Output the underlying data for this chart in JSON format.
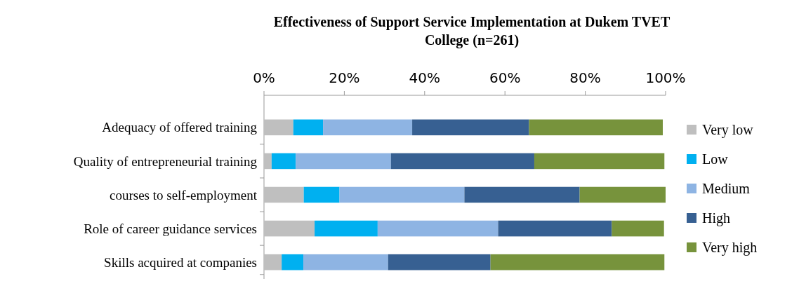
{
  "chart_data": {
    "type": "bar",
    "orientation": "horizontal",
    "stacked": true,
    "title": "Effectiveness of Support Service Implementation at Dukem TVET College (n=261)",
    "categories": [
      "Adequacy of offered training",
      "Quality of entrepreneurial training",
      "courses to self-employment",
      "Role of career guidance services",
      "Skills acquired at companies"
    ],
    "series": [
      {
        "name": "Very low",
        "color": "#bfbfbf",
        "values": [
          7.3,
          1.9,
          9.9,
          12.6,
          4.4
        ]
      },
      {
        "name": "Low",
        "color": "#00b0f0",
        "values": [
          7.4,
          6.0,
          8.9,
          15.7,
          5.4
        ]
      },
      {
        "name": "Medium",
        "color": "#8eb4e3",
        "values": [
          22.2,
          23.7,
          31.1,
          30.0,
          21.1
        ]
      },
      {
        "name": "High",
        "color": "#376092",
        "values": [
          29.1,
          35.7,
          28.7,
          28.3,
          25.5
        ]
      },
      {
        "name": "Very high",
        "color": "#77933c",
        "values": [
          33.3,
          32.4,
          21.4,
          13.0,
          43.3
        ]
      }
    ],
    "xlim": [
      0,
      100
    ],
    "xticks": [
      {
        "value": 0,
        "label": "0%"
      },
      {
        "value": 20,
        "label": "20%"
      },
      {
        "value": 40,
        "label": "40%"
      },
      {
        "value": 60,
        "label": "60%"
      },
      {
        "value": 80,
        "label": "80%"
      },
      {
        "value": 100,
        "label": "100%"
      }
    ],
    "legend": "right",
    "grid": false
  }
}
